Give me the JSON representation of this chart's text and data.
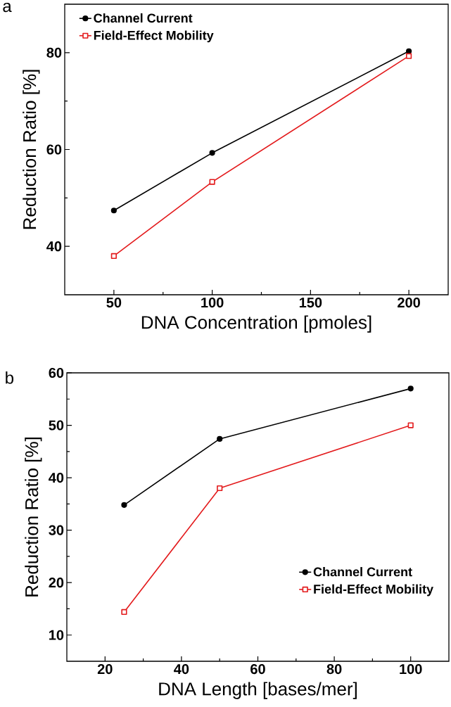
{
  "chart_data": [
    {
      "type": "line",
      "title": "a",
      "xlabel": "DNA Concentration [pmoles]",
      "ylabel": "Reduction Ratio [%]",
      "x": [
        50,
        100,
        200
      ],
      "series": [
        {
          "name": "Channel Current",
          "color": "#000000",
          "values": [
            47.4,
            59.3,
            80.3
          ],
          "marker": "circle"
        },
        {
          "name": "Field-Effect Mobility",
          "color": "#e31a1c",
          "values": [
            38.0,
            53.3,
            79.3
          ],
          "marker": "square"
        }
      ],
      "xlim": [
        25,
        220
      ],
      "ylim": [
        30,
        90
      ],
      "xticks": [
        50,
        {
          "value": 75,
          "label": null
        },
        100,
        {
          "value": 125,
          "label": null
        },
        150,
        {
          "value": 175,
          "label": null
        },
        200
      ],
      "yticks": [
        40,
        {
          "value": 50,
          "label": null
        },
        60,
        {
          "value": 70,
          "label": null
        },
        80
      ],
      "legend": "top left",
      "grid": false,
      "line_style": "solid"
    },
    {
      "type": "line",
      "title": "b",
      "xlabel": "DNA Length [bases/mer]",
      "ylabel": "Reduction Ratio [%]",
      "x": [
        25,
        50,
        100
      ],
      "series": [
        {
          "name": "Channel Current",
          "color": "#000000",
          "values": [
            34.8,
            47.4,
            57.0
          ],
          "marker": "circle"
        },
        {
          "name": "Field-Effect Mobility",
          "color": "#e31a1c",
          "values": [
            14.4,
            38.0,
            50.0
          ],
          "marker": "square"
        }
      ],
      "xlim": [
        10,
        110
      ],
      "ylim": [
        5,
        60
      ],
      "xticks": [
        20,
        {
          "value": 30,
          "label": null
        },
        40,
        {
          "value": 50,
          "label": null
        },
        60,
        {
          "value": 70,
          "label": null
        },
        80,
        {
          "value": 90,
          "label": null
        },
        100
      ],
      "yticks": [
        10,
        {
          "value": 15,
          "label": null
        },
        20,
        {
          "value": 25,
          "label": null
        },
        30,
        {
          "value": 35,
          "label": null
        },
        40,
        {
          "value": 45,
          "label": null
        },
        50,
        {
          "value": 55,
          "label": null
        },
        60
      ],
      "legend": "bottom right",
      "grid": false,
      "line_style": "solid"
    }
  ]
}
